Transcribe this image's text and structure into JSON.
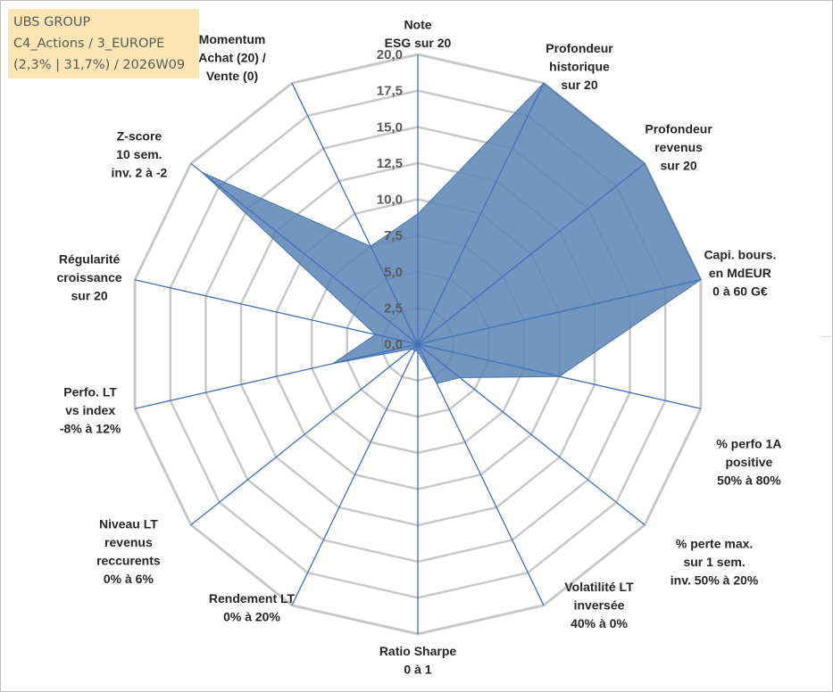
{
  "header": {
    "company": "UBS GROUP",
    "category": "C4_Actions / 3_EUROPE",
    "stats": "(2,3% | 31,7%) / 2026W09"
  },
  "colors": {
    "fill": "#5b84b5",
    "stroke": "#4a73a8",
    "spoke": "#3f6fc0",
    "grid": "#c8c8c8",
    "title_bg": "#fbe5b5"
  },
  "chart_data": {
    "type": "radar",
    "title": "UBS GROUP",
    "rmax": 20,
    "ticks": [
      0,
      2.5,
      5,
      7.5,
      10,
      12.5,
      15,
      17.5,
      20
    ],
    "tick_labels": [
      "0,0",
      "2,5",
      "5,0",
      "7,5",
      "10,0",
      "12,5",
      "15,0",
      "17,5",
      "20,0"
    ],
    "axes": [
      {
        "label": [
          "Note",
          "ESG sur 20"
        ],
        "value": 9.0
      },
      {
        "label": [
          "Profondeur",
          "historique",
          "sur 20"
        ],
        "value": 20.0
      },
      {
        "label": [
          "Profondeur",
          "revenus",
          "sur 20"
        ],
        "value": 20.0
      },
      {
        "label": [
          "Capi. bours.",
          "en MdEUR",
          "0 à 60 G€"
        ],
        "value": 20.0
      },
      {
        "label": [
          "% perfo 1A",
          "positive",
          "50% à 80%"
        ],
        "value": 10.0
      },
      {
        "label": [
          "% perte max.",
          "sur 1 sem.",
          "inv. 50% à 20%"
        ],
        "value": 3.7
      },
      {
        "label": [
          "Volatilité LT",
          "inversée",
          "40% à 0%"
        ],
        "value": 3.0
      },
      {
        "label": [
          "Ratio Sharpe",
          "0 à 1"
        ],
        "value": 0.5
      },
      {
        "label": [
          "Rendement LT",
          "0% à 20%"
        ],
        "value": 0.5
      },
      {
        "label": [
          "Niveau LT",
          "revenus",
          "reccurents",
          "0% à 6%"
        ],
        "value": 0.5
      },
      {
        "label": [
          "Perfo. LT",
          "vs index",
          "-8% à 12%"
        ],
        "value": 6.0
      },
      {
        "label": [
          "Régularité",
          "croissance",
          "sur 20"
        ],
        "value": 3.0
      },
      {
        "label": [
          "Z-score",
          "10 sem.",
          "inv. 2 à -2"
        ],
        "value": 19.0
      },
      {
        "label": [
          "Momentum",
          "Achat (20) /",
          "Vente (0)"
        ],
        "value": 7.5
      }
    ],
    "legend": "none",
    "grid": true
  }
}
